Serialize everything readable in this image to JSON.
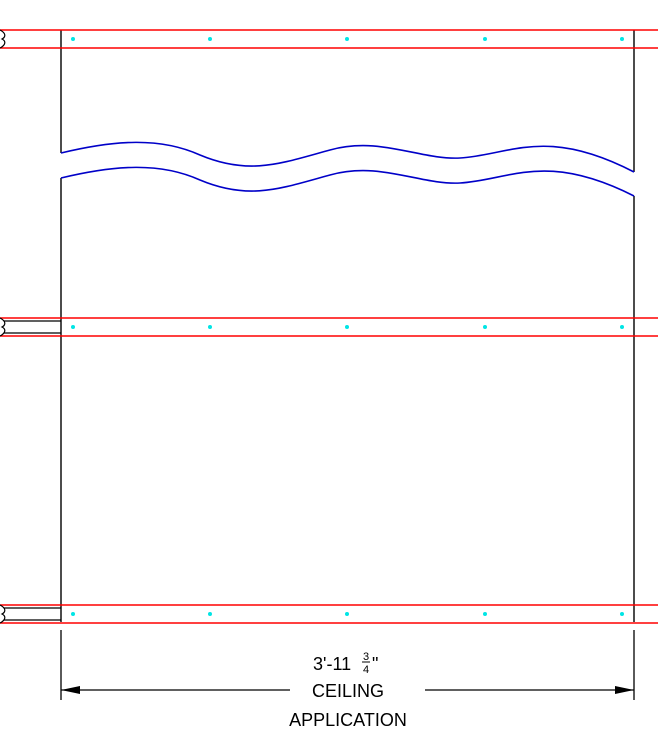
{
  "drawing": {
    "colors": {
      "background": "#ffffff",
      "panel_outline": "#000000",
      "furring_channel": "#ff0000",
      "fastener": "#00e5e5",
      "break_line": "#0000c8",
      "dimension": "#000000"
    },
    "furring_channel_count": 3,
    "fasteners_per_channel": 5,
    "dimension": {
      "feet_inches": "3'-11",
      "fraction_numerator": "3",
      "fraction_denominator": "4",
      "inch_mark": "\"",
      "label_line1": "CEILING",
      "label_line2": "APPLICATION"
    }
  }
}
